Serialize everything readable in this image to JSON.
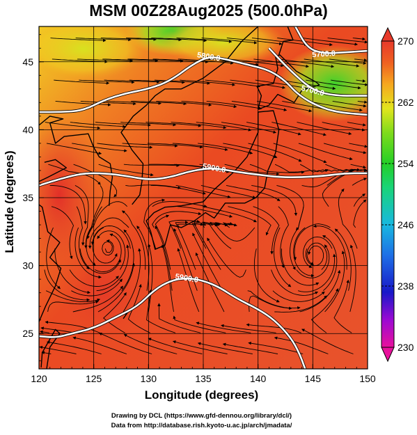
{
  "title": "MSM 00Z28Aug2025 (500.0hPa)",
  "axes": {
    "xlabel": "Longitude (degrees)",
    "ylabel": "Latitude  (degrees)",
    "x_ticks": [
      "120",
      "125",
      "130",
      "135",
      "140",
      "145",
      "150"
    ],
    "y_ticks": [
      "25",
      "30",
      "35",
      "40",
      "45"
    ],
    "xlim": [
      120,
      150
    ],
    "ylim": [
      22.4,
      47.6
    ]
  },
  "colorbar": {
    "min": 230,
    "max": 270,
    "tick_labels": [
      "270",
      "262",
      "254",
      "246",
      "238",
      "230"
    ],
    "colors": [
      "#e8119c",
      "#9b0ad3",
      "#1818c8",
      "#1e6fe6",
      "#18b8e0",
      "#19d47a",
      "#24cf27",
      "#7edb1c",
      "#e2e51e",
      "#f6a61f",
      "#ef6021",
      "#e73a2b"
    ]
  },
  "contours": [
    {
      "label": "5900.0",
      "points": [
        [
          120,
          24.8
        ],
        [
          121.5,
          24.7
        ],
        [
          123,
          25.0
        ],
        [
          125,
          25.4
        ],
        [
          127,
          26.2
        ],
        [
          129,
          27.0
        ],
        [
          130.5,
          28.2
        ],
        [
          132,
          28.9
        ],
        [
          133.5,
          29.1
        ],
        [
          135,
          28.9
        ],
        [
          136.5,
          28.4
        ],
        [
          138,
          27.6
        ],
        [
          140,
          26.8
        ],
        [
          141.5,
          26.0
        ],
        [
          143,
          24.7
        ],
        [
          143.8,
          23.5
        ],
        [
          144.3,
          22.4
        ]
      ]
    },
    {
      "label": "5900.0",
      "points": [
        [
          120,
          35.9
        ],
        [
          122,
          36.4
        ],
        [
          124,
          36.8
        ],
        [
          126,
          36.8
        ],
        [
          128,
          36.6
        ],
        [
          130,
          36.3
        ],
        [
          132,
          36.5
        ],
        [
          134,
          37.0
        ],
        [
          136,
          37.2
        ],
        [
          138,
          36.9
        ],
        [
          140,
          36.7
        ],
        [
          142,
          36.5
        ],
        [
          144,
          36.5
        ],
        [
          146,
          36.6
        ],
        [
          148,
          36.8
        ],
        [
          150,
          36.8
        ]
      ]
    },
    {
      "label": "5800.0",
      "points": [
        [
          120,
          41.3
        ],
        [
          122,
          41.3
        ],
        [
          124,
          41.4
        ],
        [
          126,
          42.2
        ],
        [
          128,
          42.7
        ],
        [
          130,
          43.0
        ],
        [
          132,
          43.6
        ],
        [
          134,
          44.8
        ],
        [
          135.5,
          45.4
        ],
        [
          137,
          45.2
        ],
        [
          139,
          44.8
        ],
        [
          141,
          44.4
        ],
        [
          142.5,
          43.6
        ],
        [
          143.5,
          42.7
        ],
        [
          145,
          41.9
        ],
        [
          147,
          41.3
        ],
        [
          150,
          41.1
        ]
      ]
    },
    {
      "label": "5700.0",
      "points": [
        [
          143.4,
          47.6
        ],
        [
          144.5,
          46.0
        ],
        [
          146,
          45.6
        ],
        [
          148,
          45.7
        ],
        [
          150,
          45.8
        ]
      ]
    },
    {
      "label": "5700.0",
      "points": [
        [
          141,
          46.0
        ],
        [
          143,
          44.3
        ],
        [
          145,
          42.9
        ],
        [
          147,
          42.5
        ],
        [
          150,
          42.5
        ]
      ]
    }
  ],
  "vortices": [
    {
      "name": "typhoon",
      "lon": 126.3,
      "lat": 31.3
    },
    {
      "name": "low",
      "lon": 145.3,
      "lat": 30.8
    }
  ],
  "footer": {
    "line1": "Drawing by DCL (https://www.gfd-dennou.org/library/dcl/)",
    "line2": "Data from http://database.rish.kyoto-u.ac.jp/arch/jmadata/"
  }
}
